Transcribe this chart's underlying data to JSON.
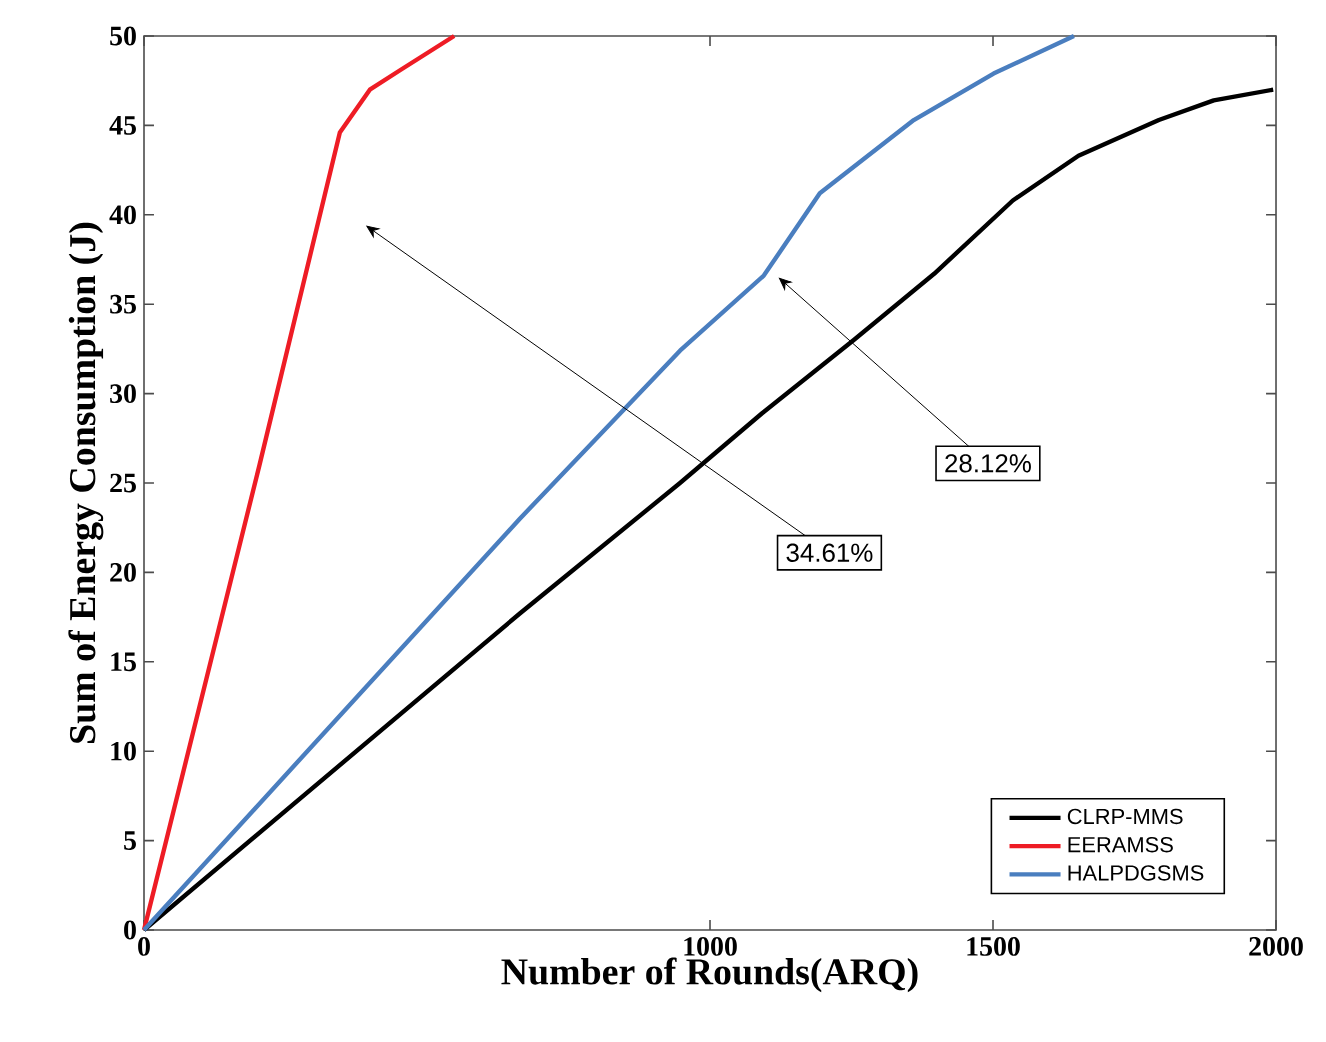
{
  "chart_data": {
    "type": "line",
    "xlabel": "Number of Rounds(ARQ)",
    "ylabel": "Sum of Energy Consumption (J)",
    "xlim": [
      0,
      2000
    ],
    "xticks": [
      0,
      1000,
      1500,
      2000
    ],
    "ylim": [
      0,
      50
    ],
    "yticks": [
      0,
      5,
      10,
      15,
      20,
      25,
      30,
      35,
      40,
      45,
      50
    ],
    "grid": false,
    "legend": "bottom right",
    "marker": "none",
    "line_style": "solid",
    "series": [
      {
        "name": "CLRP-MMS",
        "color": "#000000",
        "x": [
          0,
          664,
          947,
          1092,
          1254,
          1396,
          1535,
          1651,
          1793,
          1890,
          1995
        ],
        "values": [
          0,
          17.7,
          25.0,
          28.9,
          33.0,
          36.7,
          40.8,
          43.3,
          45.3,
          46.4,
          47.0
        ]
      },
      {
        "name": "EERAMSS",
        "color": "#ee1c25",
        "x": [
          0,
          204,
          346,
          399,
          453,
          548
        ],
        "values": [
          0,
          26.0,
          44.6,
          47.0,
          48.1,
          50
        ]
      },
      {
        "name": "HALPDGSMS",
        "color": "#4a7ebf",
        "x": [
          0,
          664,
          947,
          1095,
          1194,
          1360,
          1501,
          1643
        ],
        "values": [
          0,
          23.0,
          32.4,
          36.6,
          41.2,
          45.3,
          47.9,
          50
        ]
      }
    ],
    "annotations": [
      "34.61%",
      "28.12%"
    ]
  }
}
